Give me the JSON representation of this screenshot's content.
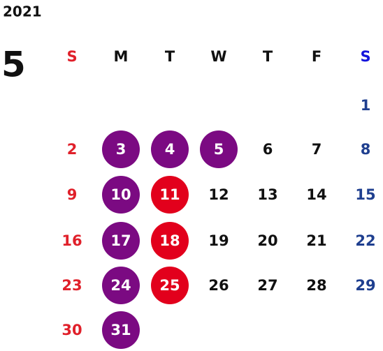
{
  "year": "2021",
  "month": "5",
  "weekdays": [
    "S",
    "M",
    "T",
    "W",
    "T",
    "F",
    "S"
  ],
  "weeks": [
    [
      null,
      null,
      null,
      null,
      null,
      null,
      "1"
    ],
    [
      "2",
      {
        "day": "3",
        "circle": "#7b0a82"
      },
      {
        "day": "4",
        "circle": "#7b0a82"
      },
      {
        "day": "5",
        "circle": "#7b0a82"
      },
      "6",
      "7",
      "8"
    ],
    [
      "9",
      {
        "day": "10",
        "circle": "#7b0a82"
      },
      {
        "day": "11",
        "circle": "#e2001c"
      },
      "12",
      "13",
      "14",
      "15"
    ],
    [
      "16",
      {
        "day": "17",
        "circle": "#7b0a82"
      },
      {
        "day": "18",
        "circle": "#e2001c"
      },
      "19",
      "20",
      "21",
      "22"
    ],
    [
      "23",
      {
        "day": "24",
        "circle": "#7b0a82"
      },
      {
        "day": "25",
        "circle": "#e2001c"
      },
      "26",
      "27",
      "28",
      "29"
    ],
    [
      "30",
      {
        "day": "31",
        "circle": "#7b0a82"
      },
      null,
      null,
      null,
      null,
      null
    ]
  ]
}
